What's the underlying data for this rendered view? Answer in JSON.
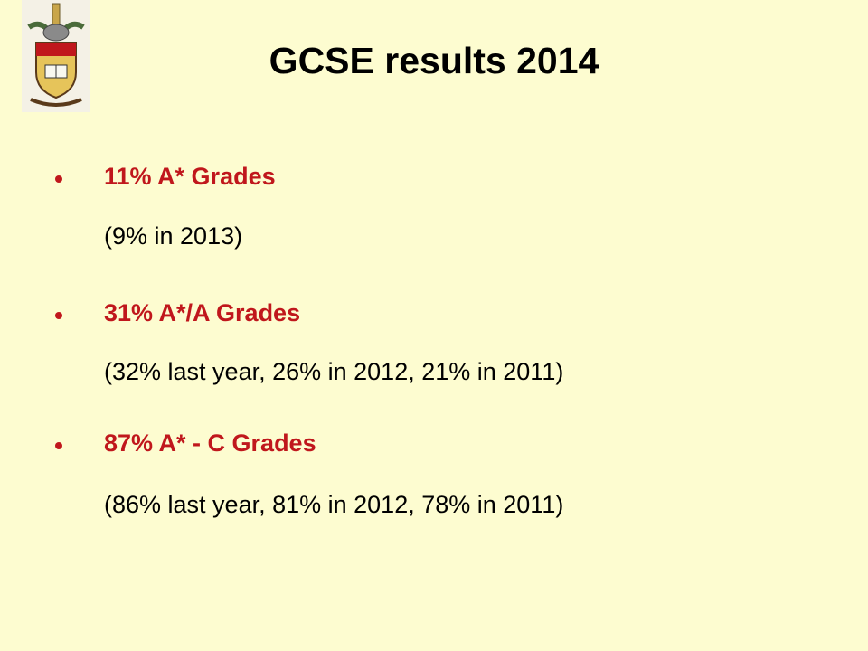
{
  "header": {
    "title": "GCSE results 2014"
  },
  "bullets": [
    {
      "heading": "11% A* Grades",
      "detail": "(9% in 2013)"
    },
    {
      "heading": "31% A*/A Grades",
      "detail": "(32% last year, 26% in 2012, 21% in 2011)"
    },
    {
      "heading": "87% A* - C Grades",
      "detail": "(86% last year, 81% in 2012, 78% in 2011)"
    }
  ]
}
